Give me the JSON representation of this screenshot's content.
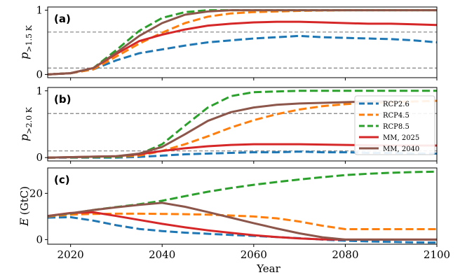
{
  "chart_data": {
    "type": "line",
    "xlabel": "Year",
    "xlim": [
      2015,
      2100
    ],
    "xticks": [
      2020,
      2040,
      2060,
      2080,
      2100
    ],
    "legend": {
      "placement": "right, panel (b)",
      "entries": [
        "RCP2.6",
        "RCP4.5",
        "RCP8.5",
        "MM, 2025",
        "MM, 2040"
      ]
    },
    "colors": {
      "RCP2.6": "#1f77b4",
      "RCP4.5": "#ff7f0e",
      "RCP8.5": "#2ca02c",
      "MM, 2025": "#d62728",
      "MM, 2040": "#8c564b",
      "threshold": "#808080"
    },
    "panels": [
      {
        "label": "(a)",
        "ylabel_main": "p",
        "ylabel_sub": ">1.5 K",
        "ylim": [
          -0.05,
          1.05
        ],
        "yticks": [
          0,
          1
        ],
        "hlines": [
          0.1,
          0.66
        ],
        "series": [
          {
            "name": "RCP2.6",
            "style": "dashed",
            "x": [
              2015,
              2020,
              2025,
              2030,
              2035,
              2040,
              2045,
              2050,
              2055,
              2060,
              2065,
              2070,
              2075,
              2080,
              2085,
              2090,
              2095,
              2100
            ],
            "y": [
              0.0,
              0.02,
              0.08,
              0.22,
              0.33,
              0.39,
              0.45,
              0.5,
              0.53,
              0.56,
              0.58,
              0.6,
              0.58,
              0.57,
              0.56,
              0.55,
              0.53,
              0.5
            ]
          },
          {
            "name": "RCP4.5",
            "style": "dashed",
            "x": [
              2015,
              2020,
              2025,
              2030,
              2035,
              2040,
              2045,
              2050,
              2055,
              2060,
              2065,
              2070,
              2080,
              2090,
              2100
            ],
            "y": [
              0.0,
              0.02,
              0.08,
              0.28,
              0.48,
              0.65,
              0.8,
              0.9,
              0.95,
              0.97,
              0.98,
              0.99,
              1.0,
              1.0,
              1.0
            ]
          },
          {
            "name": "RCP8.5",
            "style": "dashed",
            "x": [
              2015,
              2020,
              2025,
              2030,
              2035,
              2040,
              2045,
              2050,
              2055,
              2060,
              2080,
              2100
            ],
            "y": [
              0.0,
              0.02,
              0.1,
              0.38,
              0.68,
              0.88,
              0.97,
              1.0,
              1.0,
              1.0,
              1.0,
              1.0
            ]
          },
          {
            "name": "MM, 2025",
            "style": "solid",
            "x": [
              2015,
              2020,
              2025,
              2030,
              2035,
              2040,
              2045,
              2050,
              2055,
              2060,
              2065,
              2070,
              2075,
              2080,
              2085,
              2090,
              2095,
              2100
            ],
            "y": [
              0.0,
              0.02,
              0.1,
              0.32,
              0.52,
              0.62,
              0.7,
              0.76,
              0.79,
              0.81,
              0.82,
              0.82,
              0.81,
              0.8,
              0.79,
              0.79,
              0.78,
              0.77
            ]
          },
          {
            "name": "MM, 2040",
            "style": "solid",
            "x": [
              2015,
              2020,
              2025,
              2030,
              2035,
              2040,
              2045,
              2050,
              2055,
              2060,
              2080,
              2100
            ],
            "y": [
              0.0,
              0.02,
              0.1,
              0.34,
              0.6,
              0.8,
              0.93,
              0.98,
              1.0,
              1.0,
              1.0,
              1.0
            ]
          }
        ]
      },
      {
        "label": "(b)",
        "ylabel_main": "p",
        "ylabel_sub": ">2.0 K",
        "ylim": [
          -0.05,
          1.05
        ],
        "yticks": [
          0,
          1
        ],
        "hlines": [
          0.1,
          0.66
        ],
        "series": [
          {
            "name": "RCP2.6",
            "style": "dashed",
            "x": [
              2015,
              2030,
              2035,
              2040,
              2045,
              2050,
              2055,
              2060,
              2065,
              2070,
              2075,
              2080,
              2085,
              2090,
              2095,
              2100
            ],
            "y": [
              0.0,
              0.0,
              0.01,
              0.03,
              0.05,
              0.06,
              0.07,
              0.08,
              0.08,
              0.09,
              0.08,
              0.08,
              0.07,
              0.07,
              0.06,
              0.06
            ]
          },
          {
            "name": "RCP4.5",
            "style": "dashed",
            "x": [
              2015,
              2030,
              2035,
              2040,
              2045,
              2050,
              2055,
              2060,
              2065,
              2070,
              2075,
              2080,
              2085,
              2090,
              2095,
              2100
            ],
            "y": [
              0.0,
              0.01,
              0.03,
              0.1,
              0.2,
              0.32,
              0.45,
              0.56,
              0.65,
              0.72,
              0.77,
              0.8,
              0.82,
              0.83,
              0.84,
              0.85
            ]
          },
          {
            "name": "RCP8.5",
            "style": "dashed",
            "x": [
              2015,
              2030,
              2035,
              2040,
              2045,
              2050,
              2055,
              2060,
              2065,
              2070,
              2080,
              2090,
              2100
            ],
            "y": [
              0.0,
              0.01,
              0.05,
              0.2,
              0.48,
              0.75,
              0.92,
              0.98,
              0.99,
              1.0,
              1.0,
              1.0,
              1.0
            ]
          },
          {
            "name": "MM, 2025",
            "style": "solid",
            "x": [
              2015,
              2030,
              2035,
              2040,
              2045,
              2050,
              2055,
              2060,
              2065,
              2070,
              2080,
              2090,
              2100
            ],
            "y": [
              0.0,
              0.02,
              0.05,
              0.1,
              0.14,
              0.17,
              0.19,
              0.2,
              0.2,
              0.2,
              0.19,
              0.18,
              0.18
            ]
          },
          {
            "name": "MM, 2040",
            "style": "solid",
            "x": [
              2015,
              2030,
              2035,
              2040,
              2045,
              2050,
              2055,
              2060,
              2065,
              2070,
              2075,
              2080,
              2085,
              2090
            ],
            "y": [
              0.0,
              0.02,
              0.06,
              0.16,
              0.35,
              0.55,
              0.68,
              0.75,
              0.79,
              0.81,
              0.82,
              0.83,
              0.84,
              0.84
            ]
          }
        ]
      },
      {
        "label": "(c)",
        "ylabel_main": "E",
        "ylabel_unit": "(GtC)",
        "ylim": [
          -2,
          31
        ],
        "yticks": [
          0,
          20
        ],
        "hlines": [],
        "series": [
          {
            "name": "RCP2.6",
            "style": "dashed",
            "x": [
              2015,
              2020,
              2025,
              2030,
              2035,
              2040,
              2045,
              2050,
              2055,
              2060,
              2065,
              2070,
              2075,
              2080,
              2085,
              2090,
              2095,
              2100
            ],
            "y": [
              9.5,
              9.7,
              8.2,
              6.2,
              4.6,
              3.7,
              3.0,
              2.5,
              2.0,
              1.6,
              1.1,
              0.6,
              0.0,
              -0.5,
              -0.8,
              -1.0,
              -1.2,
              -1.3
            ]
          },
          {
            "name": "RCP4.5",
            "style": "dashed",
            "x": [
              2015,
              2020,
              2025,
              2030,
              2035,
              2040,
              2045,
              2050,
              2055,
              2060,
              2065,
              2070,
              2075,
              2080,
              2085,
              2090,
              2095,
              2100
            ],
            "y": [
              10.0,
              10.8,
              11.1,
              11.2,
              11.2,
              11.1,
              11.0,
              10.8,
              10.4,
              10.0,
              9.2,
              7.8,
              6.0,
              4.5,
              4.5,
              4.5,
              4.5,
              4.5
            ]
          },
          {
            "name": "RCP8.5",
            "style": "dashed",
            "x": [
              2015,
              2020,
              2025,
              2030,
              2035,
              2040,
              2045,
              2050,
              2055,
              2060,
              2065,
              2070,
              2075,
              2080,
              2085,
              2090,
              2095,
              2100
            ],
            "y": [
              10.2,
              11.3,
              12.8,
              14.1,
              15.3,
              16.8,
              18.8,
              20.7,
              22.3,
              23.7,
              24.9,
              26.0,
              27.0,
              27.9,
              28.5,
              28.9,
              29.2,
              29.4
            ]
          },
          {
            "name": "MM, 2025",
            "style": "solid",
            "x": [
              2015,
              2020,
              2025,
              2030,
              2035,
              2040,
              2045,
              2050,
              2055,
              2060,
              2065,
              2070,
              2075,
              2080,
              2090,
              2100
            ],
            "y": [
              10.2,
              11.5,
              11.8,
              10.2,
              8.5,
              6.8,
              5.3,
              4.0,
              2.9,
              1.9,
              1.1,
              0.5,
              0.1,
              0.0,
              0.0,
              0.0
            ]
          },
          {
            "name": "MM, 2040",
            "style": "solid",
            "x": [
              2015,
              2020,
              2025,
              2030,
              2035,
              2040,
              2045,
              2050,
              2055,
              2060,
              2065,
              2070,
              2075,
              2080,
              2085,
              2090,
              2095,
              2100
            ],
            "y": [
              10.2,
              11.4,
              12.8,
              14.0,
              15.0,
              15.9,
              14.2,
              11.9,
              9.5,
              7.1,
              4.8,
              2.7,
              1.0,
              0.0,
              0.0,
              0.0,
              0.0,
              0.0
            ]
          }
        ]
      }
    ]
  }
}
